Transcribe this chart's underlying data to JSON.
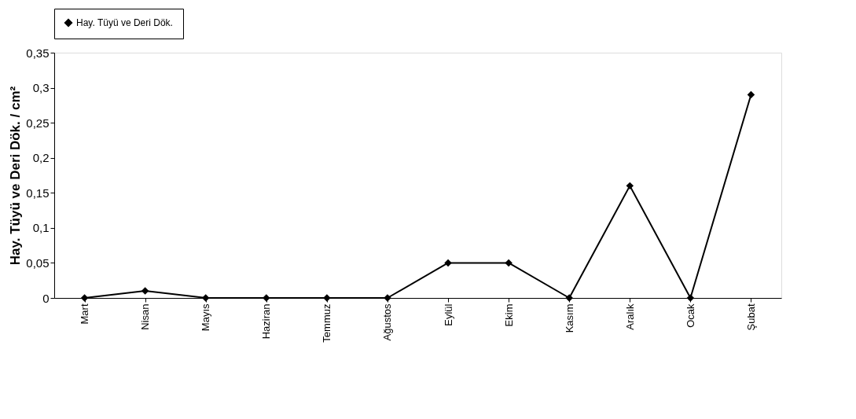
{
  "chart_data": {
    "type": "line",
    "ylabel": "Hay. Tüyü ve Deri Dök. / cm²",
    "categories": [
      "Mart",
      "Nisan",
      "Mayıs",
      "Haziran",
      "Temmuz",
      "Ağustos",
      "Eylül",
      "Ekim",
      "Kasım",
      "Aralık",
      "Ocak",
      "Şubat"
    ],
    "series": [
      {
        "name": "Hay. Tüyü ve Deri Dök.",
        "color": "#000000",
        "values": [
          0,
          0.01,
          0,
          0,
          0,
          0,
          0.05,
          0.05,
          0,
          0.16,
          0,
          0.29
        ]
      }
    ],
    "ylim": [
      0,
      0.35
    ],
    "yticks": [
      {
        "value": 0,
        "label": "0"
      },
      {
        "value": 0.05,
        "label": "0,05"
      },
      {
        "value": 0.1,
        "label": "0,1"
      },
      {
        "value": 0.15,
        "label": "0,15"
      },
      {
        "value": 0.2,
        "label": "0,2"
      },
      {
        "value": 0.25,
        "label": "0,25"
      },
      {
        "value": 0.3,
        "label": "0,3"
      },
      {
        "value": 0.35,
        "label": "0,35"
      }
    ],
    "grid": false,
    "legend": "top",
    "marker": "diamond",
    "line_style": "solid"
  }
}
